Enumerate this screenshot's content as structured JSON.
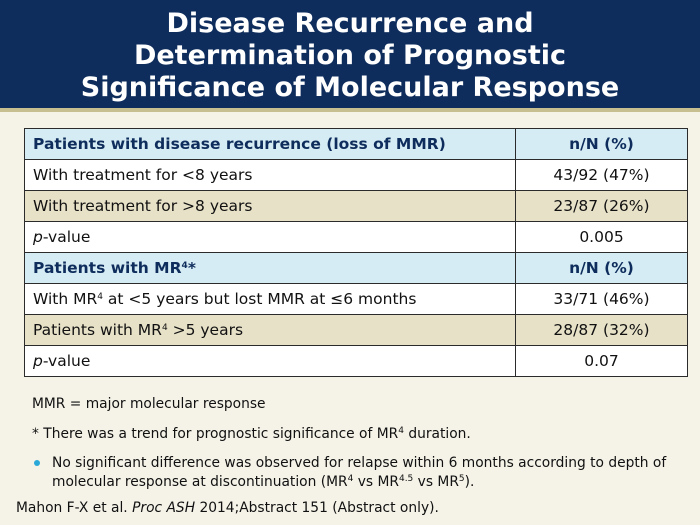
{
  "title": {
    "line1": "Disease Recurrence and",
    "line2": "Determination of Prognostic",
    "line3": "Significance of Molecular Response"
  },
  "table": {
    "section1_header": "Patients with disease recurrence (loss of MMR)",
    "section1_col": "n/N (%)",
    "row1_label": "With treatment for <8 years",
    "row1_value": "43/92 (47%)",
    "row2_label": "With treatment for >8 years",
    "row2_value": "23/87 (26%)",
    "pvalue_p": "p",
    "pvalue_rest": "-value",
    "pvalue1": "0.005",
    "section2_header_a": "Patients with MR",
    "section2_header_sup": "4",
    "section2_header_b": "*",
    "section2_col": "n/N (%)",
    "row3_a": "With MR",
    "row3_sup": "4",
    "row3_b": " at <5 years but lost MMR at ≤6 months",
    "row3_value": "33/71 (46%)",
    "row4_a": "Patients with MR",
    "row4_sup": "4",
    "row4_b": " >5 years",
    "row4_value": "28/87 (32%)",
    "pvalue2": "0.07"
  },
  "notes": {
    "abbrev": "MMR = major molecular response",
    "trend_a": "* There was a trend for prognostic significance of MR",
    "trend_sup": "4",
    "trend_b": " duration.",
    "bullet_a": "No significant difference was observed for relapse within 6 months according to depth of molecular response at discontinuation (MR",
    "bullet_sup1": "4",
    "bullet_b": " vs MR",
    "bullet_sup2": "4.5",
    "bullet_c": " vs MR",
    "bullet_sup3": "5",
    "bullet_d": ")."
  },
  "citation": {
    "a": "Mahon F-X et al. ",
    "b": "Proc ASH",
    "c": " 2014;Abstract 151 (Abstract only)."
  },
  "colors": {
    "header_bg": "#0e2d5c",
    "header_row_bg": "#d6ecf4",
    "tan_row_bg": "#e7e1c8",
    "bullet": "#2aa9d8"
  }
}
